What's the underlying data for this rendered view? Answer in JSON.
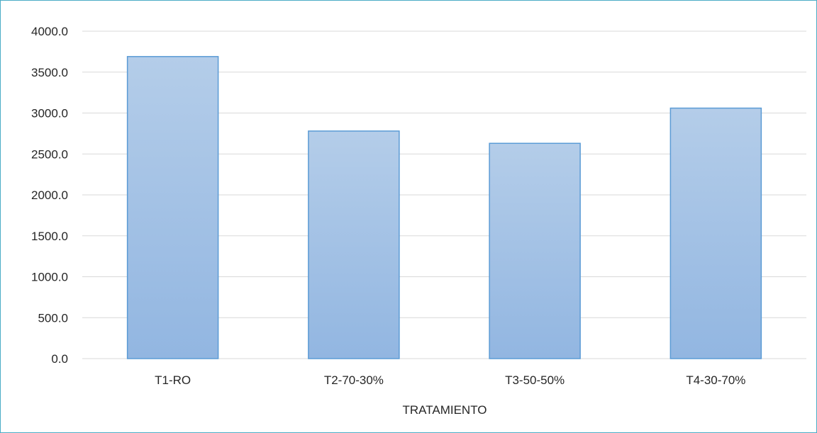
{
  "chart_data": {
    "type": "bar",
    "categories": [
      "T1-RO",
      "T2-70-30%",
      "T3-50-50%",
      "T4-30-70%"
    ],
    "values": [
      3690,
      2780,
      2630,
      3060
    ],
    "xlabel": "TRATAMIENTO",
    "ylabel": "",
    "ylim": [
      0,
      4000
    ],
    "yticks": [
      "0.0",
      "500.0",
      "1000.0",
      "1500.0",
      "2000.0",
      "2500.0",
      "3000.0",
      "3500.0",
      "4000.0"
    ],
    "grid": true,
    "legend": "none"
  },
  "colors": {
    "bar_fill_top": "#b4cde9",
    "bar_fill_bottom": "#92b6e1",
    "bar_stroke": "#5b9bd5",
    "grid": "#d9d9d9",
    "frame": "#4bacc6"
  }
}
